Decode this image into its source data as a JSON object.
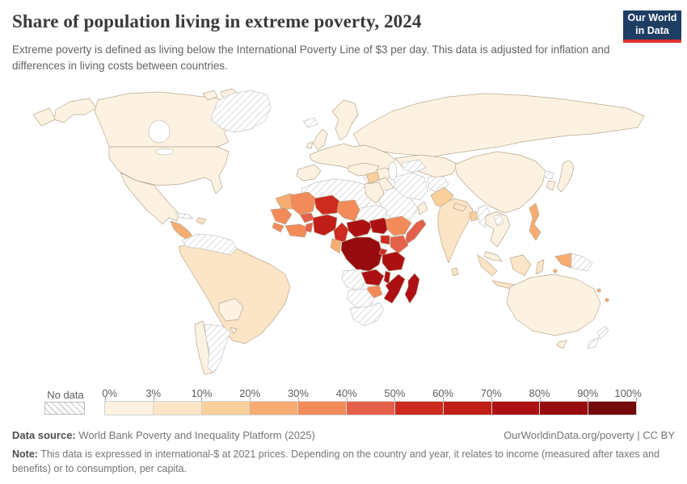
{
  "header": {
    "title": "Share of population living in extreme poverty, 2024",
    "subtitle": "Extreme poverty is defined as living below the International Poverty Line of $3 per day. This data is adjusted for inflation and differences in living costs between countries.",
    "logo": {
      "line1": "Our World",
      "line2": "in Data",
      "bg_color": "#1d3d63",
      "accent_color": "#e0302e"
    }
  },
  "chart_data": {
    "type": "choropleth-map",
    "title": "Share of population living in extreme poverty, 2024",
    "unit": "% of population",
    "projection": "world",
    "legend": {
      "no_data_label": "No data",
      "tick_labels": [
        "0%",
        "3%",
        "10%",
        "20%",
        "30%",
        "40%",
        "50%",
        "60%",
        "70%",
        "80%",
        "90%",
        "100%"
      ],
      "bin_ranges": [
        "0-3%",
        "3-10%",
        "10-20%",
        "20-30%",
        "30-40%",
        "40-50%",
        "50-60%",
        "60-70%",
        "70-80%",
        "80-90%",
        "90-100%"
      ],
      "bin_colors": [
        "#fdf2e2",
        "#fbe5c6",
        "#f9cf9c",
        "#f7ad72",
        "#f28b59",
        "#e4604a",
        "#cd2a20",
        "#c01e18",
        "#ac1012",
        "#960c0e",
        "#740a09"
      ],
      "no_data_pattern": "diagonal-hatch",
      "position": "bottom"
    },
    "countries": [
      {
        "key": "russia",
        "name": "Russia",
        "bin": 0
      },
      {
        "key": "canada",
        "name": "Canada",
        "bin": 0
      },
      {
        "key": "united-states",
        "name": "United States",
        "bin": 0
      },
      {
        "key": "greenland",
        "name": "Greenland",
        "bin": -1
      },
      {
        "key": "mexico",
        "name": "Mexico",
        "bin": 0
      },
      {
        "key": "central-america",
        "name": "Central America (Guatemala, Honduras, Nicaragua)",
        "bin": 3
      },
      {
        "key": "cuba",
        "name": "Cuba",
        "bin": -1
      },
      {
        "key": "hispaniola",
        "name": "Haiti / Dominican Republic",
        "bin": 1
      },
      {
        "key": "venezuela-guyanas",
        "name": "Venezuela, Guyana & Suriname",
        "bin": -1
      },
      {
        "key": "brazil-andes",
        "name": "Brazil, Colombia, Ecuador & Peru",
        "bin": 1
      },
      {
        "key": "bolivia-paraguay",
        "name": "Bolivia & Paraguay",
        "bin": 0
      },
      {
        "key": "chile",
        "name": "Chile",
        "bin": 0
      },
      {
        "key": "argentina",
        "name": "Argentina",
        "bin": -1
      },
      {
        "key": "uruguay",
        "name": "Uruguay",
        "bin": 0
      },
      {
        "key": "iceland",
        "name": "Iceland",
        "bin": -1
      },
      {
        "key": "united-kingdom",
        "name": "United Kingdom",
        "bin": 0
      },
      {
        "key": "ireland",
        "name": "Ireland",
        "bin": 0
      },
      {
        "key": "scandinavia",
        "name": "Scandinavia",
        "bin": 0
      },
      {
        "key": "europe-mainland",
        "name": "Mainland Europe",
        "bin": 0
      },
      {
        "key": "iberia",
        "name": "Spain & Portugal",
        "bin": 0
      },
      {
        "key": "italy",
        "name": "Italy",
        "bin": -1
      },
      {
        "key": "balkans",
        "name": "Balkans & Greece",
        "bin": 0
      },
      {
        "key": "turkey",
        "name": "Turkey",
        "bin": 0
      },
      {
        "key": "syria",
        "name": "Syria",
        "bin": 2
      },
      {
        "key": "iraq",
        "name": "Iraq",
        "bin": 0
      },
      {
        "key": "saudi-arabia-yemen",
        "name": "Saudi Arabia & Yemen",
        "bin": -1
      },
      {
        "key": "oman",
        "name": "Oman",
        "bin": 0
      },
      {
        "key": "iran",
        "name": "Iran",
        "bin": -1
      },
      {
        "key": "afghanistan",
        "name": "Afghanistan",
        "bin": -1
      },
      {
        "key": "turkmenistan",
        "name": "Turkmenistan",
        "bin": -1
      },
      {
        "key": "kazakhstan-central-asia",
        "name": "Kazakhstan & Central Asia",
        "bin": 0
      },
      {
        "key": "pakistan",
        "name": "Pakistan",
        "bin": 2
      },
      {
        "key": "india",
        "name": "India",
        "bin": 1
      },
      {
        "key": "nepal",
        "name": "Nepal",
        "bin": 1
      },
      {
        "key": "sri-lanka",
        "name": "Sri Lanka",
        "bin": 1
      },
      {
        "key": "bangladesh",
        "name": "Bangladesh",
        "bin": 2
      },
      {
        "key": "myanmar",
        "name": "Myanmar",
        "bin": -1
      },
      {
        "key": "laos",
        "name": "Laos",
        "bin": -1
      },
      {
        "key": "mainland-southeast-asia",
        "name": "Thailand, Vietnam & Cambodia",
        "bin": 0
      },
      {
        "key": "malaysia",
        "name": "Malaysia",
        "bin": 0
      },
      {
        "key": "indonesia",
        "name": "Indonesia",
        "bin": 1
      },
      {
        "key": "philippines",
        "name": "Philippines",
        "bin": 3
      },
      {
        "key": "new-guinea-west",
        "name": "New Guinea (west)",
        "bin": 3
      },
      {
        "key": "new-guinea-east",
        "name": "New Guinea (east)",
        "bin": -1
      },
      {
        "key": "china-mongolia",
        "name": "China & Mongolia",
        "bin": 0
      },
      {
        "key": "japan",
        "name": "Japan",
        "bin": 0
      },
      {
        "key": "south-korea",
        "name": "South Korea",
        "bin": 0
      },
      {
        "key": "north-korea",
        "name": "North Korea",
        "bin": -1
      },
      {
        "key": "australia",
        "name": "Australia",
        "bin": 0
      },
      {
        "key": "new-zealand",
        "name": "New Zealand",
        "bin": -1
      },
      {
        "key": "pacific-islands",
        "name": "Pacific Islands",
        "bin": 3
      },
      {
        "key": "north-africa",
        "name": "Morocco, Algeria & Libya",
        "bin": -1
      },
      {
        "key": "egypt",
        "name": "Egypt",
        "bin": 0
      },
      {
        "key": "sudan",
        "name": "Sudan & Eritrea",
        "bin": -1
      },
      {
        "key": "mauritania",
        "name": "Mauritania",
        "bin": 3
      },
      {
        "key": "mali",
        "name": "Mali",
        "bin": 4
      },
      {
        "key": "senegal-guinea",
        "name": "Senegal & Guinea",
        "bin": 4
      },
      {
        "key": "sierra-leone-liberia",
        "name": "Sierra Leone & Liberia",
        "bin": 4
      },
      {
        "key": "cote-divoire-ghana",
        "name": "Côte d'Ivoire & Ghana",
        "bin": 4
      },
      {
        "key": "burkina-faso",
        "name": "Burkina Faso",
        "bin": 5
      },
      {
        "key": "togo-benin",
        "name": "Togo & Benin",
        "bin": 5
      },
      {
        "key": "niger",
        "name": "Niger",
        "bin": 6
      },
      {
        "key": "chad",
        "name": "Chad",
        "bin": 4
      },
      {
        "key": "nigeria",
        "name": "Nigeria",
        "bin": 7
      },
      {
        "key": "cameroon",
        "name": "Cameroon",
        "bin": 6
      },
      {
        "key": "central-african-republic",
        "name": "Central African Republic",
        "bin": 8
      },
      {
        "key": "south-sudan",
        "name": "South Sudan",
        "bin": 8
      },
      {
        "key": "ethiopia",
        "name": "Ethiopia",
        "bin": 4
      },
      {
        "key": "somalia",
        "name": "Somalia",
        "bin": 5
      },
      {
        "key": "kenya",
        "name": "Kenya",
        "bin": 5
      },
      {
        "key": "uganda",
        "name": "Uganda",
        "bin": 6
      },
      {
        "key": "rwanda-burundi",
        "name": "Rwanda & Burundi",
        "bin": 6
      },
      {
        "key": "dr-congo",
        "name": "Democratic Republic of Congo",
        "bin": 9
      },
      {
        "key": "congo-gabon",
        "name": "Congo & Gabon",
        "bin": 3
      },
      {
        "key": "tanzania",
        "name": "Tanzania",
        "bin": 8
      },
      {
        "key": "angola",
        "name": "Angola",
        "bin": -1
      },
      {
        "key": "zambia",
        "name": "Zambia",
        "bin": 8
      },
      {
        "key": "malawi",
        "name": "Malawi",
        "bin": 8
      },
      {
        "key": "mozambique",
        "name": "Mozambique",
        "bin": 8
      },
      {
        "key": "zimbabwe",
        "name": "Zimbabwe",
        "bin": 4
      },
      {
        "key": "namibia-botswana",
        "name": "Namibia & Botswana",
        "bin": -1
      },
      {
        "key": "south-africa",
        "name": "South Africa",
        "bin": -1
      },
      {
        "key": "madagascar",
        "name": "Madagascar",
        "bin": 8
      }
    ]
  },
  "footer": {
    "source_label": "Data source:",
    "source_value": "World Bank Poverty and Inequality Platform (2025)",
    "link_text": "OurWorldinData.org/poverty | CC BY",
    "note_label": "Note:",
    "note_value": "This data is expressed in international-$ at 2021 prices. Depending on the country and year, it relates to income (measured after taxes and benefits) or to consumption, per capita."
  }
}
